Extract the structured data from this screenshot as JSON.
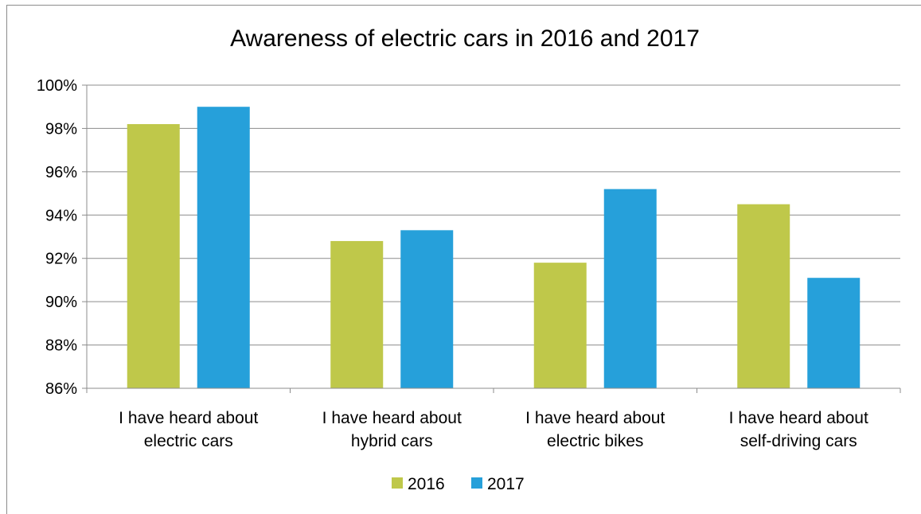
{
  "chart_data": {
    "type": "bar",
    "title": "Awareness of electric cars in 2016 and 2017",
    "xlabel": "",
    "ylabel": "",
    "categories": [
      [
        "I have heard about",
        "electric cars"
      ],
      [
        "I have heard about",
        "hybrid cars"
      ],
      [
        "I have heard about",
        "electric bikes"
      ],
      [
        "I have heard about",
        "self-driving cars"
      ]
    ],
    "series": [
      {
        "name": "2016",
        "color": "#bfc84a",
        "values": [
          98.2,
          92.8,
          91.8,
          94.5
        ]
      },
      {
        "name": "2017",
        "color": "#26a0da",
        "values": [
          99.0,
          93.3,
          95.2,
          91.1
        ]
      }
    ],
    "ylim": [
      86,
      100
    ],
    "yticks": [
      86,
      88,
      90,
      92,
      94,
      96,
      98,
      100
    ],
    "ytick_labels": [
      "86%",
      "88%",
      "90%",
      "92%",
      "94%",
      "96%",
      "98%",
      "100%"
    ],
    "grid": true,
    "legend_position": "bottom"
  }
}
